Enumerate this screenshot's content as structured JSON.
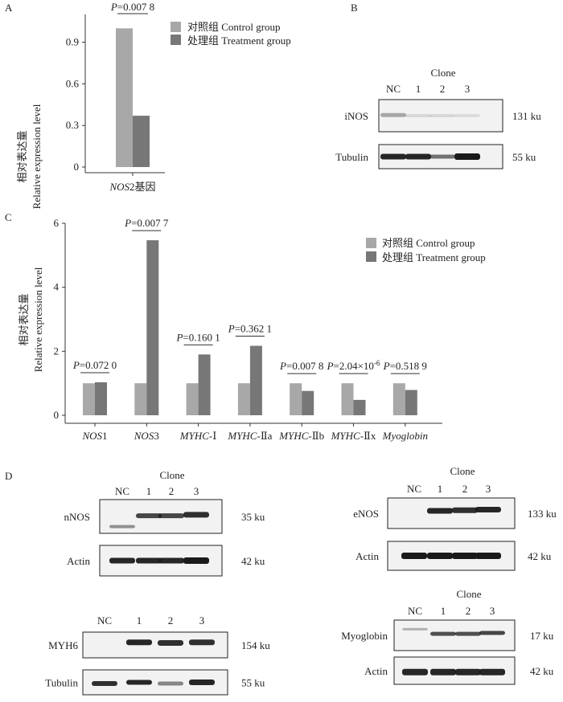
{
  "panels": {
    "A": "A",
    "B": "B",
    "C": "C",
    "D": "D"
  },
  "legend": {
    "control": "对照组 Control group",
    "treatment": "处理组 Treatment group"
  },
  "colors": {
    "control": "#a8a8a8",
    "treatment": "#777777",
    "band": "#1a1a1a",
    "blot_bg": "#f2f2f2"
  },
  "yaxis": {
    "cn": "相对表达量",
    "en": "Relative expression level"
  },
  "chart_data": [
    {
      "type": "bar",
      "panel": "A",
      "categories": [
        "NOS2基因"
      ],
      "series": [
        {
          "name": "对照组 Control group",
          "values": [
            1.0
          ]
        },
        {
          "name": "处理组 Treatment group",
          "values": [
            0.37
          ]
        }
      ],
      "ylabel": "相对表达量 Relative expression level",
      "yticks": [
        0,
        0.3,
        0.6,
        0.9
      ],
      "ylim": [
        0,
        1.1
      ],
      "pvalues": [
        {
          "prefix": "P",
          "value": "=0.007 8"
        }
      ]
    },
    {
      "type": "bar",
      "panel": "C",
      "categories": [
        "NOS1",
        "NOS3",
        "MYHC-Ⅰ",
        "MYHC-Ⅱa",
        "MYHC-Ⅱb",
        "MYHC-Ⅱx",
        "Myoglobin"
      ],
      "series": [
        {
          "name": "对照组 Control group",
          "values": [
            1.0,
            1.0,
            1.0,
            1.0,
            1.0,
            1.0,
            1.0
          ]
        },
        {
          "name": "处理组 Treatment group",
          "values": [
            1.03,
            5.47,
            1.9,
            2.17,
            0.76,
            0.48,
            0.79
          ]
        }
      ],
      "ylabel": "相对表达量 Relative expression level",
      "yticks": [
        0,
        2,
        4,
        6
      ],
      "ylim": [
        0,
        6
      ],
      "pvalues": [
        {
          "prefix": "P",
          "value": "=0.072 0"
        },
        {
          "prefix": "P",
          "value": "=0.007 7"
        },
        {
          "prefix": "P",
          "value": "=0.160 1"
        },
        {
          "prefix": "P",
          "value": "=0.362 1"
        },
        {
          "prefix": "P",
          "value": "=0.007 8"
        },
        {
          "prefix": "P",
          "value": "=2.04×10",
          "exp": "-6"
        },
        {
          "prefix": "P",
          "value": "=0.518 9"
        }
      ]
    }
  ],
  "blots": {
    "B": {
      "clone": "Clone",
      "lanes": [
        "NC",
        "1",
        "2",
        "3"
      ],
      "rows": [
        {
          "label": "iNOS",
          "size": "131 ku"
        },
        {
          "label": "Tubulin",
          "size": "55 ku"
        }
      ]
    },
    "D1": {
      "clone": "Clone",
      "lanes": [
        "NC",
        "1",
        "2",
        "3"
      ],
      "rows": [
        {
          "label": "nNOS",
          "size": "35 ku"
        },
        {
          "label": "Actin",
          "size": "42 ku"
        }
      ]
    },
    "D2": {
      "clone": "Clone",
      "lanes": [
        "NC",
        "1",
        "2",
        "3"
      ],
      "rows": [
        {
          "label": "eNOS",
          "size": "133 ku"
        },
        {
          "label": "Actin",
          "size": "42 ku"
        }
      ]
    },
    "D3": {
      "lanes": [
        "NC",
        "1",
        "2",
        "3"
      ],
      "rows": [
        {
          "label": "MYH6",
          "size": "154 ku"
        },
        {
          "label": "Tubulin",
          "size": "55 ku"
        }
      ]
    },
    "D4": {
      "clone": "Clone",
      "lanes": [
        "NC",
        "1",
        "2",
        "3"
      ],
      "rows": [
        {
          "label": "Myoglobin",
          "size": "17 ku"
        },
        {
          "label": "Actin",
          "size": "42 ku"
        }
      ]
    }
  }
}
